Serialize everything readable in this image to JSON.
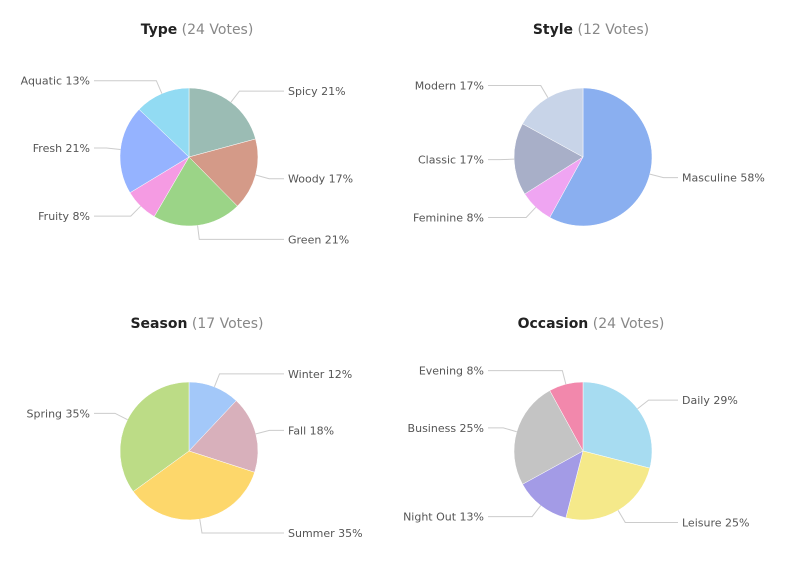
{
  "chart_data": [
    {
      "type": "pie",
      "title": "Type",
      "subtitle": "(24 Votes)",
      "slices": [
        {
          "label": "Spicy 21%",
          "value": 21,
          "color": "#9bbcb4"
        },
        {
          "label": "Woody 17%",
          "value": 17,
          "color": "#d49a88"
        },
        {
          "label": "Green 21%",
          "value": 21,
          "color": "#9bd487"
        },
        {
          "label": "Fruity 8%",
          "value": 8,
          "color": "#f59be3"
        },
        {
          "label": "Fresh 21%",
          "value": 21,
          "color": "#95b3ff"
        },
        {
          "label": "Aquatic 13%",
          "value": 13,
          "color": "#92dbf3"
        }
      ]
    },
    {
      "type": "pie",
      "title": "Style",
      "subtitle": "(12 Votes)",
      "slices": [
        {
          "label": "Masculine 58%",
          "value": 58,
          "color": "#8aaff0"
        },
        {
          "label": "Feminine 8%",
          "value": 8,
          "color": "#efa5f2"
        },
        {
          "label": "Classic 17%",
          "value": 17,
          "color": "#a8afc8"
        },
        {
          "label": "Modern 17%",
          "value": 17,
          "color": "#c8d4e8"
        }
      ]
    },
    {
      "type": "pie",
      "title": "Season",
      "subtitle": "(17 Votes)",
      "slices": [
        {
          "label": "Winter 12%",
          "value": 12,
          "color": "#a3c8f9"
        },
        {
          "label": "Fall 18%",
          "value": 18,
          "color": "#d8b0bb"
        },
        {
          "label": "Summer 35%",
          "value": 35,
          "color": "#fdd76b"
        },
        {
          "label": "Spring 35%",
          "value": 35,
          "color": "#bcdc86"
        }
      ]
    },
    {
      "type": "pie",
      "title": "Occasion",
      "subtitle": "(24 Votes)",
      "slices": [
        {
          "label": "Daily 29%",
          "value": 29,
          "color": "#a7dcf1"
        },
        {
          "label": "Leisure 25%",
          "value": 25,
          "color": "#f5e98a"
        },
        {
          "label": "Night Out 13%",
          "value": 13,
          "color": "#a39be6"
        },
        {
          "label": "Business 25%",
          "value": 25,
          "color": "#c4c4c4"
        },
        {
          "label": "Evening 8%",
          "value": 8,
          "color": "#f288ac"
        }
      ]
    }
  ]
}
